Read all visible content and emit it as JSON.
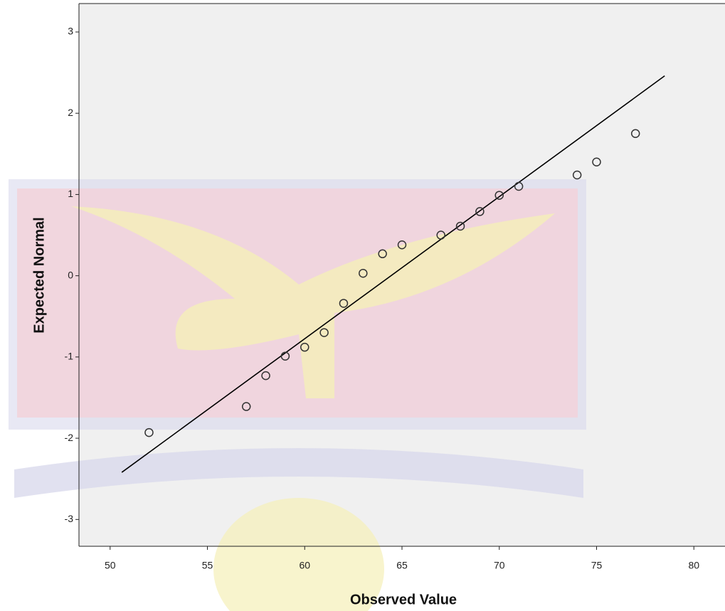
{
  "chart_data": {
    "type": "scatter",
    "x_label": "Observed Value",
    "y_label": "Expected Normal",
    "x": [
      52,
      57,
      58,
      59,
      60,
      61,
      62,
      63,
      64,
      65,
      67,
      68,
      69,
      70,
      71,
      74,
      75,
      77
    ],
    "values": [
      -1.93,
      -1.61,
      -1.23,
      -0.99,
      -0.88,
      -0.7,
      -0.34,
      0.03,
      0.27,
      0.38,
      0.5,
      0.61,
      0.79,
      0.99,
      1.1,
      1.24,
      1.4,
      1.75
    ],
    "color": "#333333",
    "reference_line": {
      "x": [
        50.6,
        78.5
      ],
      "y": [
        -2.42,
        2.46
      ],
      "color": "#000000"
    },
    "xlim": [
      48.4,
      81.6
    ],
    "xticks": [
      50,
      55,
      60,
      65,
      70,
      75,
      80
    ],
    "ylim": [
      -3.33,
      3.35
    ],
    "yticks": [
      -3,
      -2,
      -1,
      0,
      1,
      2,
      3
    ]
  }
}
